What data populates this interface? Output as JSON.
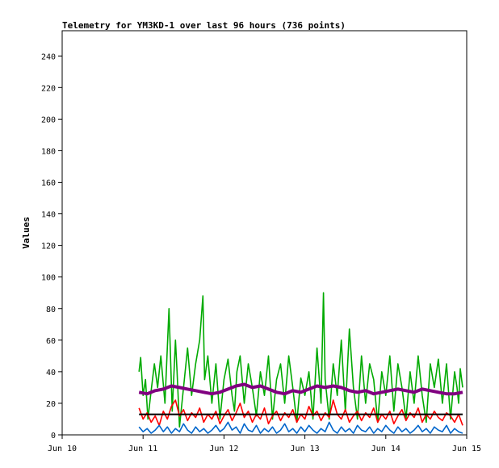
{
  "chart_data": {
    "type": "line",
    "title": "Telemetry for YM3KD-1 over last 96 hours (736 points)",
    "xlabel": "",
    "ylabel": "Values",
    "xlim": [
      0,
      5
    ],
    "ylim": [
      0,
      256
    ],
    "x_ticks": [
      {
        "value": 0,
        "label": "Jun 10"
      },
      {
        "value": 1,
        "label": "Jun 11"
      },
      {
        "value": 2,
        "label": "Jun 12"
      },
      {
        "value": 3,
        "label": "Jun 13"
      },
      {
        "value": 4,
        "label": "Jun 14"
      },
      {
        "value": 5,
        "label": "Jun 15"
      }
    ],
    "y_ticks": [
      0,
      20,
      40,
      60,
      80,
      100,
      120,
      140,
      160,
      180,
      200,
      220,
      240
    ],
    "grid": false,
    "legend": "none",
    "series": [
      {
        "color": "#00aa00",
        "x": [
          0.95,
          0.97,
          1.0,
          1.03,
          1.06,
          1.1,
          1.14,
          1.18,
          1.22,
          1.27,
          1.32,
          1.36,
          1.4,
          1.42,
          1.45,
          1.5,
          1.55,
          1.6,
          1.65,
          1.7,
          1.74,
          1.76,
          1.8,
          1.85,
          1.9,
          1.95,
          2.0,
          2.05,
          2.1,
          2.13,
          2.16,
          2.2,
          2.25,
          2.3,
          2.35,
          2.4,
          2.45,
          2.5,
          2.55,
          2.6,
          2.65,
          2.7,
          2.75,
          2.8,
          2.85,
          2.9,
          2.95,
          3.0,
          3.05,
          3.1,
          3.15,
          3.2,
          3.23,
          3.25,
          3.3,
          3.35,
          3.4,
          3.45,
          3.5,
          3.55,
          3.6,
          3.65,
          3.7,
          3.75,
          3.8,
          3.85,
          3.9,
          3.95,
          4.0,
          4.05,
          4.1,
          4.15,
          4.2,
          4.25,
          4.3,
          4.35,
          4.4,
          4.45,
          4.5,
          4.55,
          4.6,
          4.65,
          4.7,
          4.75,
          4.8,
          4.85,
          4.88,
          4.9,
          4.92,
          4.95
        ],
        "y": [
          40,
          49,
          25,
          35,
          10,
          28,
          45,
          30,
          50,
          20,
          80,
          15,
          60,
          40,
          5,
          30,
          55,
          25,
          45,
          60,
          88,
          35,
          50,
          20,
          45,
          10,
          35,
          48,
          25,
          15,
          40,
          50,
          20,
          45,
          30,
          12,
          40,
          25,
          50,
          10,
          35,
          45,
          20,
          50,
          30,
          8,
          36,
          25,
          40,
          10,
          55,
          20,
          90,
          35,
          10,
          45,
          25,
          60,
          15,
          67,
          30,
          10,
          50,
          20,
          45,
          35,
          8,
          40,
          25,
          50,
          15,
          45,
          30,
          10,
          40,
          20,
          50,
          25,
          8,
          45,
          30,
          48,
          20,
          45,
          10,
          40,
          30,
          20,
          42,
          30
        ]
      },
      {
        "color": "#ff0000",
        "x": [
          0.95,
          1.0,
          1.05,
          1.1,
          1.15,
          1.2,
          1.25,
          1.3,
          1.35,
          1.4,
          1.45,
          1.5,
          1.55,
          1.6,
          1.65,
          1.7,
          1.75,
          1.8,
          1.85,
          1.9,
          1.95,
          2.0,
          2.05,
          2.1,
          2.15,
          2.2,
          2.25,
          2.3,
          2.35,
          2.4,
          2.45,
          2.5,
          2.55,
          2.6,
          2.65,
          2.7,
          2.75,
          2.8,
          2.85,
          2.9,
          2.95,
          3.0,
          3.05,
          3.1,
          3.15,
          3.2,
          3.25,
          3.3,
          3.35,
          3.4,
          3.45,
          3.5,
          3.55,
          3.6,
          3.65,
          3.7,
          3.75,
          3.8,
          3.85,
          3.9,
          3.95,
          4.0,
          4.05,
          4.1,
          4.15,
          4.2,
          4.25,
          4.3,
          4.35,
          4.4,
          4.45,
          4.5,
          4.55,
          4.6,
          4.65,
          4.7,
          4.75,
          4.8,
          4.85,
          4.9,
          4.95
        ],
        "y": [
          17,
          10,
          14,
          8,
          12,
          6,
          15,
          10,
          18,
          22,
          12,
          16,
          9,
          14,
          11,
          17,
          8,
          13,
          10,
          15,
          7,
          12,
          16,
          9,
          14,
          20,
          11,
          15,
          8,
          13,
          10,
          17,
          7,
          12,
          15,
          9,
          14,
          11,
          16,
          8,
          13,
          10,
          18,
          12,
          15,
          9,
          14,
          11,
          22,
          13,
          10,
          16,
          8,
          12,
          15,
          9,
          14,
          11,
          17,
          8,
          13,
          10,
          15,
          7,
          12,
          16,
          9,
          14,
          11,
          17,
          8,
          13,
          10,
          15,
          11,
          9,
          14,
          12,
          8,
          13,
          6
        ]
      },
      {
        "color": "#0066cc",
        "x": [
          0.95,
          1.0,
          1.05,
          1.1,
          1.15,
          1.2,
          1.25,
          1.3,
          1.35,
          1.4,
          1.45,
          1.5,
          1.55,
          1.6,
          1.65,
          1.7,
          1.75,
          1.8,
          1.85,
          1.9,
          1.95,
          2.0,
          2.05,
          2.1,
          2.15,
          2.2,
          2.25,
          2.3,
          2.35,
          2.4,
          2.45,
          2.5,
          2.55,
          2.6,
          2.65,
          2.7,
          2.75,
          2.8,
          2.85,
          2.9,
          2.95,
          3.0,
          3.05,
          3.1,
          3.15,
          3.2,
          3.25,
          3.3,
          3.35,
          3.4,
          3.45,
          3.5,
          3.55,
          3.6,
          3.65,
          3.7,
          3.75,
          3.8,
          3.85,
          3.9,
          3.95,
          4.0,
          4.05,
          4.1,
          4.15,
          4.2,
          4.25,
          4.3,
          4.35,
          4.4,
          4.45,
          4.5,
          4.55,
          4.6,
          4.65,
          4.7,
          4.75,
          4.8,
          4.85,
          4.9,
          4.95
        ],
        "y": [
          5,
          2,
          4,
          1,
          3,
          6,
          2,
          5,
          1,
          4,
          2,
          7,
          3,
          1,
          5,
          2,
          4,
          1,
          3,
          6,
          2,
          4,
          8,
          3,
          5,
          1,
          7,
          3,
          2,
          6,
          1,
          4,
          2,
          5,
          1,
          3,
          7,
          2,
          4,
          1,
          5,
          2,
          6,
          3,
          1,
          4,
          2,
          8,
          3,
          1,
          5,
          2,
          4,
          1,
          6,
          3,
          2,
          5,
          1,
          4,
          2,
          6,
          3,
          1,
          5,
          2,
          4,
          1,
          3,
          6,
          2,
          4,
          1,
          5,
          3,
          2,
          6,
          1,
          4,
          2,
          1
        ]
      },
      {
        "color": "#800080",
        "width": 4,
        "x": [
          0.95,
          1.05,
          1.15,
          1.25,
          1.35,
          1.45,
          1.55,
          1.65,
          1.75,
          1.85,
          1.95,
          2.05,
          2.15,
          2.25,
          2.35,
          2.45,
          2.55,
          2.65,
          2.75,
          2.85,
          2.95,
          3.05,
          3.15,
          3.25,
          3.35,
          3.45,
          3.55,
          3.65,
          3.75,
          3.85,
          3.95,
          4.05,
          4.15,
          4.25,
          4.35,
          4.45,
          4.55,
          4.65,
          4.75,
          4.85,
          4.95
        ],
        "y": [
          27,
          26,
          28,
          29,
          31,
          30,
          29,
          28,
          27,
          26,
          27,
          29,
          31,
          32,
          30,
          31,
          29,
          27,
          26,
          28,
          27,
          29,
          31,
          30,
          31,
          30,
          28,
          27,
          28,
          26,
          27,
          28,
          29,
          28,
          27,
          29,
          28,
          27,
          26,
          26,
          27
        ]
      },
      {
        "color": "#000000",
        "width": 2,
        "x": [
          0.95,
          4.95
        ],
        "y": [
          13,
          13
        ]
      }
    ]
  }
}
